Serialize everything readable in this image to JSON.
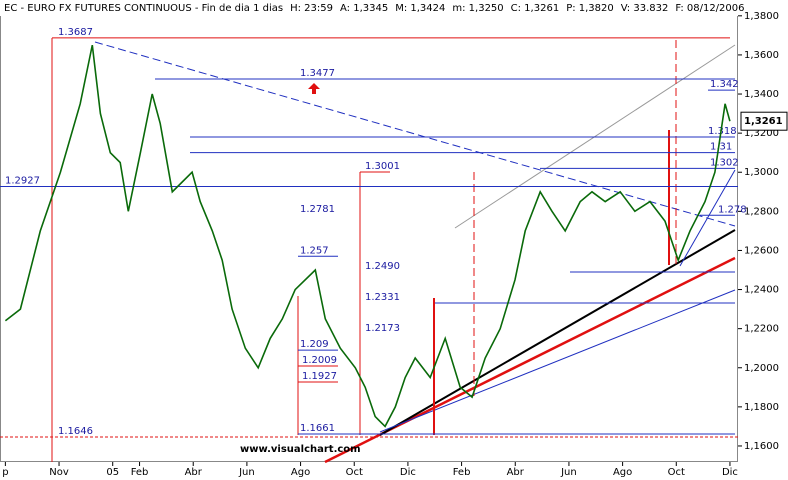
{
  "chart_data": {
    "type": "line",
    "header_fields": [
      "EC - EURO FX FUTURES CONTINUOUS - Fin de dia 1 dias",
      "H: 23:59",
      "A: 1,3345",
      "M: 1,3424",
      "m: 1,3250",
      "C: 1,3261",
      "P: 1,3820",
      "V: 33.832",
      "F: 08/12/2006"
    ],
    "watermark": "www.visualchart.com",
    "series": [
      {
        "name": "EC",
        "color": "#0a6a0a",
        "x": [
          0,
          0.56,
          1.3,
          2.05,
          2.79,
          3.24,
          3.54,
          3.91,
          4.28,
          4.58,
          5.03,
          5.47,
          5.77,
          6.22,
          6.59,
          6.96,
          7.26,
          7.71,
          8.08,
          8.45,
          8.94,
          9.42,
          9.87,
          10.32,
          10.8,
          11.55,
          11.92,
          12.48,
          13.04,
          13.41,
          13.78,
          14.15,
          14.53,
          14.9,
          15.27,
          15.83,
          16.39,
          16.95,
          17.39,
          17.88,
          18.44,
          18.99,
          19.37,
          19.93,
          20.37,
          20.86,
          21.42,
          21.86,
          22.35,
          22.91,
          23.46,
          24.02,
          24.58,
          25.07,
          25.51,
          26.07,
          26.44,
          26.82,
          27
        ],
        "values": [
          1.224,
          1.23,
          1.27,
          1.3,
          1.335,
          1.365,
          1.33,
          1.31,
          1.305,
          1.28,
          1.31,
          1.34,
          1.325,
          1.29,
          1.295,
          1.3,
          1.285,
          1.27,
          1.255,
          1.23,
          1.21,
          1.2,
          1.215,
          1.225,
          1.24,
          1.25,
          1.225,
          1.21,
          1.2,
          1.19,
          1.175,
          1.17,
          1.18,
          1.195,
          1.205,
          1.195,
          1.215,
          1.19,
          1.185,
          1.205,
          1.22,
          1.245,
          1.27,
          1.29,
          1.28,
          1.27,
          1.285,
          1.29,
          1.285,
          1.29,
          1.28,
          1.285,
          1.275,
          1.255,
          1.27,
          1.285,
          1.3,
          1.335,
          1.3261
        ]
      }
    ],
    "last_price": {
      "value": 1.3261,
      "label": "1,3261"
    },
    "levels": [
      1.3687,
      1.3477,
      1.3001,
      1.2927,
      1.2781,
      1.249,
      1.2331,
      1.2173,
      1.2009,
      1.1927,
      1.1661,
      1.1646
    ],
    "level_labels": [
      "1.3687",
      "1.3477",
      "1.3001",
      "1.2927",
      "1.2781",
      "1.2490",
      "1.2331",
      "1.2173",
      "1.2009",
      "1.1927",
      "1.1661",
      "1.1646"
    ],
    "short_levels": [
      1.257,
      1.209,
      1.342,
      1.318,
      1.31,
      1.302,
      1.278
    ],
    "xlim": [
      -0.2,
      27.3
    ],
    "ylim": [
      1.1518,
      1.384
    ],
    "xticks": [
      {
        "value": 0,
        "label": "p"
      },
      {
        "value": 2,
        "label": "Nov"
      },
      {
        "value": 4,
        "label": "05"
      },
      {
        "value": 5,
        "label": "Feb"
      },
      {
        "value": 7,
        "label": "Abr"
      },
      {
        "value": 9,
        "label": "Jun"
      },
      {
        "value": 11,
        "label": "Ago"
      },
      {
        "value": 13,
        "label": "Oct"
      },
      {
        "value": 15,
        "label": "Dic"
      },
      {
        "value": 17,
        "label": "Feb"
      },
      {
        "value": 19,
        "label": "Abr"
      },
      {
        "value": 21,
        "label": "Jun"
      },
      {
        "value": 23,
        "label": "Ago"
      },
      {
        "value": 25,
        "label": "Oct"
      },
      {
        "value": 27,
        "label": "Dic"
      }
    ],
    "yticks": [
      {
        "value": 1.16,
        "label": "1,1600"
      },
      {
        "value": 1.18,
        "label": "1,1800"
      },
      {
        "value": 1.2,
        "label": "1,2000"
      },
      {
        "value": 1.22,
        "label": "1,2200"
      },
      {
        "value": 1.24,
        "label": "1,2400"
      },
      {
        "value": 1.26,
        "label": "1,2600"
      },
      {
        "value": 1.28,
        "label": "1,2800"
      },
      {
        "value": 1.3,
        "label": "1,3000"
      },
      {
        "value": 1.32,
        "label": "1,3200"
      },
      {
        "value": 1.34,
        "label": "1,3400"
      },
      {
        "value": 1.36,
        "label": "1,3600"
      },
      {
        "value": 1.38,
        "label": "1,3800"
      }
    ]
  }
}
